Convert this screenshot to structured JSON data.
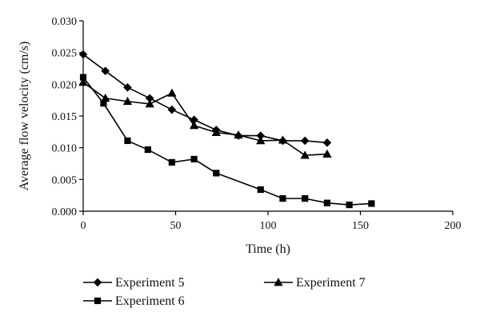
{
  "chart_data": {
    "type": "line",
    "xlabel": "Time (h)",
    "ylabel": "Average flow velocity (cm/s)",
    "xlim": [
      0,
      200
    ],
    "ylim": [
      0,
      0.03
    ],
    "x_ticks": [
      0,
      50,
      100,
      150,
      200
    ],
    "x_tick_labels": [
      "0",
      "50",
      "100",
      "150",
      "200"
    ],
    "y_ticks": [
      0.0,
      0.005,
      0.01,
      0.015,
      0.02,
      0.025,
      0.03
    ],
    "y_tick_labels": [
      "0.000",
      "0.005",
      "0.010",
      "0.015",
      "0.020",
      "0.025",
      "0.030"
    ],
    "grid": false,
    "legend_position": "bottom",
    "series": [
      {
        "name": "Experiment 5",
        "marker": "diamond",
        "color": "#000000",
        "x": [
          0,
          12,
          24,
          36,
          48,
          60,
          72,
          84,
          96,
          108,
          120,
          132
        ],
        "y": [
          0.0247,
          0.0221,
          0.0195,
          0.0178,
          0.016,
          0.0144,
          0.0128,
          0.0119,
          0.0119,
          0.0111,
          0.0111,
          0.0108
        ]
      },
      {
        "name": "Experiment 6",
        "marker": "square",
        "color": "#000000",
        "x": [
          0,
          11,
          24,
          35,
          48,
          60,
          72,
          96,
          108,
          120,
          132,
          144,
          156
        ],
        "y": [
          0.0211,
          0.017,
          0.0111,
          0.0097,
          0.0077,
          0.0082,
          0.006,
          0.0034,
          0.002,
          0.002,
          0.0013,
          0.001,
          0.0012
        ]
      },
      {
        "name": "Experiment 7",
        "marker": "triangle",
        "color": "#000000",
        "x": [
          0,
          12,
          24,
          36,
          48,
          60,
          72,
          84,
          96,
          108,
          120,
          132
        ],
        "y": [
          0.0203,
          0.0178,
          0.0173,
          0.0169,
          0.0186,
          0.0135,
          0.0124,
          0.012,
          0.0111,
          0.0112,
          0.0088,
          0.009
        ]
      }
    ]
  }
}
